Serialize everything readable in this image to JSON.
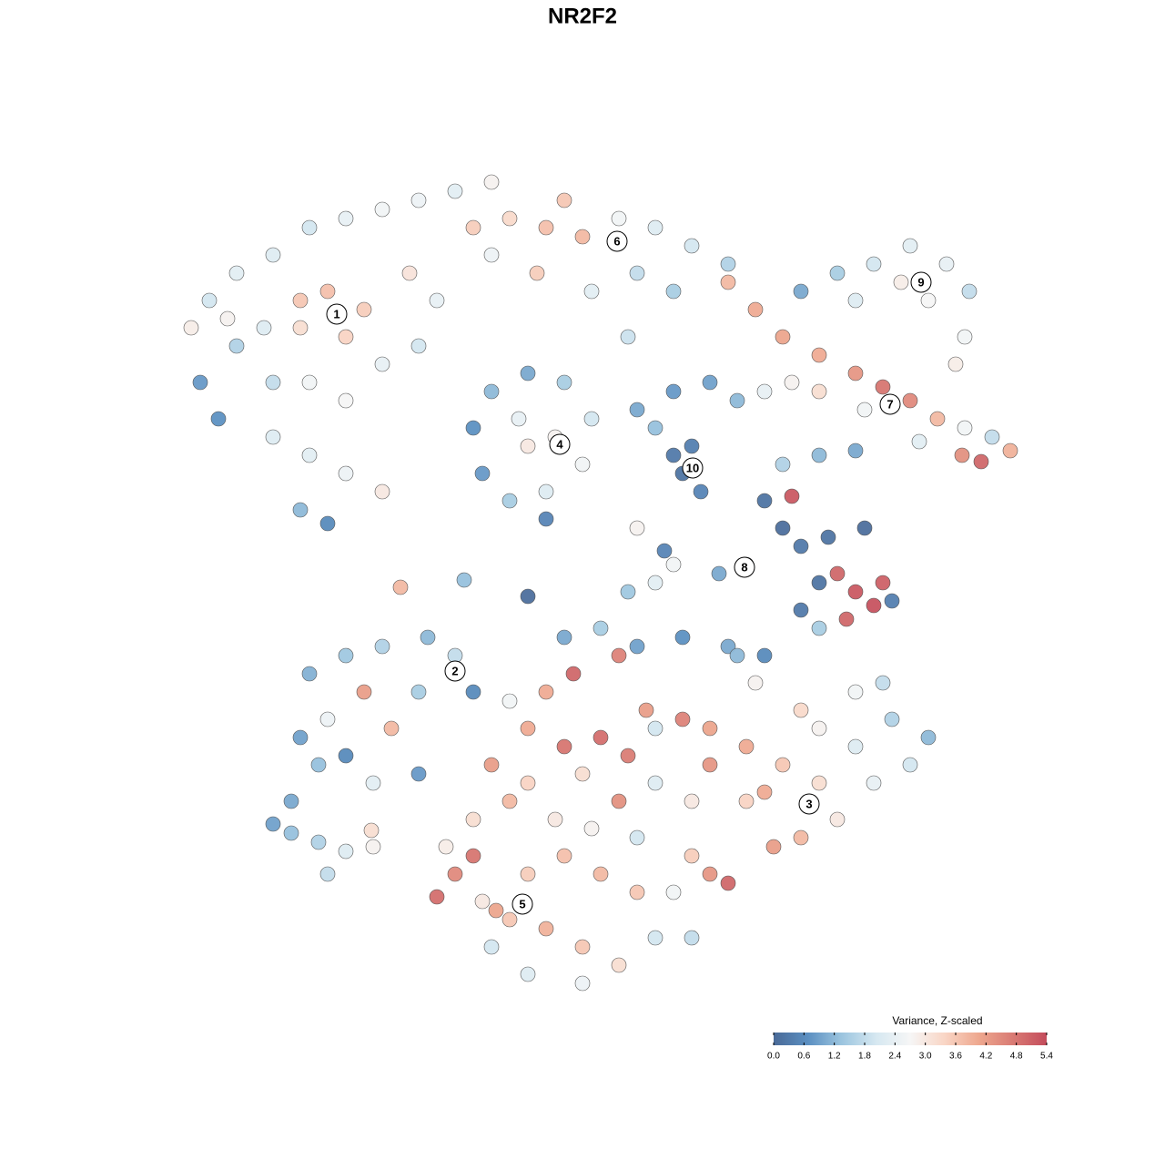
{
  "chart_data": {
    "type": "scatter",
    "title": "NR2F2",
    "xlim": [
      0,
      128
    ],
    "ylim": [
      0,
      128
    ],
    "x": [
      23,
      26,
      30,
      34,
      38,
      42,
      46,
      50,
      54,
      33,
      36,
      40,
      38,
      33,
      29,
      26,
      22,
      24,
      30,
      34,
      38,
      42,
      46,
      30,
      34,
      38,
      33,
      36,
      42,
      45,
      48,
      25,
      21,
      56,
      60,
      64,
      62,
      68,
      72,
      76,
      80,
      70,
      65,
      59,
      54,
      52,
      74,
      69,
      80,
      83,
      86,
      90,
      94,
      97,
      100,
      103,
      106,
      109,
      111,
      107.8,
      105.7,
      90,
      95,
      101,
      87,
      88,
      92,
      96,
      100,
      104,
      106.5,
      106,
      105,
      102,
      94,
      99,
      52,
      54,
      58,
      62,
      65,
      64,
      60,
      56,
      53,
      58,
      61,
      57,
      60,
      70,
      74,
      78,
      81,
      76,
      75,
      77,
      74,
      72,
      84,
      84,
      86,
      88,
      91,
      95,
      90,
      88,
      92,
      94,
      96,
      97,
      93,
      87,
      82,
      79,
      90,
      98,
      86,
      90,
      94,
      72,
      69,
      74,
      62,
      66,
      70,
      75,
      80,
      84,
      58,
      44,
      51,
      70,
      73,
      34,
      38,
      42,
      47,
      50,
      52,
      40,
      36,
      33,
      38,
      43,
      41,
      46,
      35,
      46,
      30,
      32,
      35,
      38,
      36,
      41,
      32,
      40.8,
      60,
      63,
      68,
      71,
      75,
      78,
      82,
      86,
      90,
      94,
      98,
      102,
      100,
      96,
      92,
      88,
      85,
      80,
      78,
      76,
      82,
      76,
      72,
      68,
      64,
      62,
      58,
      54,
      56,
      52,
      49,
      50,
      52,
      48,
      53,
      56,
      60,
      64,
      68,
      64,
      58,
      54,
      72,
      76,
      70,
      66,
      62,
      58,
      61,
      65,
      70,
      74,
      58,
      66,
      69,
      72,
      78,
      84,
      94,
      97,
      90,
      88,
      56,
      81,
      83,
      54.5
    ],
    "y": [
      95,
      98,
      100,
      103,
      104,
      105,
      106,
      107,
      108,
      95,
      96,
      94,
      91,
      92,
      92,
      90,
      86,
      82,
      86,
      86,
      84,
      88,
      90,
      80,
      78,
      76,
      72,
      70.5,
      74,
      98,
      95,
      93,
      92,
      104,
      103,
      102,
      106,
      104,
      103,
      101,
      99,
      98,
      96,
      98,
      100,
      103,
      96,
      91,
      97,
      94,
      91,
      89,
      87,
      85.5,
      84,
      82,
      81,
      80,
      78.5,
      77.3,
      78,
      85,
      83,
      79.5,
      86,
      96,
      98,
      99,
      101,
      99,
      96,
      91,
      88,
      95,
      95,
      97,
      81,
      85,
      87,
      86,
      82,
      77,
      74,
      73,
      76,
      79,
      80,
      82,
      71,
      83,
      85,
      86,
      84,
      79,
      76,
      74,
      78,
      81,
      85,
      73,
      70,
      68,
      69,
      70,
      64,
      61,
      65,
      63,
      61.5,
      64,
      60,
      73.5,
      66,
      65,
      59,
      62,
      77,
      78,
      78.5,
      64,
      63,
      66,
      58,
      59,
      57,
      58,
      57,
      56,
      62.5,
      63.5,
      64.3,
      70,
      67.5,
      54,
      56,
      57,
      58,
      56,
      52,
      52,
      49,
      47,
      45,
      48,
      42,
      43,
      44,
      52,
      37.5,
      36.5,
      35.5,
      34.5,
      32,
      35,
      40,
      36.8,
      52,
      54,
      56,
      50,
      49,
      48,
      46,
      44,
      42,
      46,
      49,
      47,
      44,
      42,
      38,
      36,
      35,
      31,
      32,
      34,
      40,
      40,
      42,
      40,
      43,
      46,
      48,
      44,
      40,
      38,
      35,
      32,
      34,
      29.5,
      29,
      27,
      26,
      24,
      22,
      20,
      21,
      24,
      25,
      25,
      30,
      32,
      34,
      32,
      38,
      37,
      36,
      30,
      42,
      47,
      45,
      48,
      44,
      41,
      52,
      53,
      48,
      50,
      51,
      56,
      53,
      28
    ],
    "values": [
      2.0,
      2.3,
      2.2,
      2.0,
      2.4,
      2.6,
      2.5,
      2.3,
      2.8,
      3.6,
      3.7,
      3.5,
      3.4,
      3.2,
      2.2,
      1.6,
      0.8,
      0.7,
      1.8,
      2.6,
      2.7,
      2.4,
      2.0,
      2.2,
      2.3,
      2.5,
      1.2,
      0.6,
      3.0,
      3.1,
      2.4,
      2.8,
      2.9,
      3.3,
      3.7,
      3.8,
      3.6,
      2.6,
      2.2,
      2.0,
      1.6,
      1.8,
      2.3,
      3.5,
      2.5,
      3.5,
      1.5,
      1.9,
      3.8,
      4.0,
      4.1,
      4.0,
      4.3,
      4.8,
      4.5,
      3.8,
      2.6,
      1.8,
      3.9,
      5.0,
      4.4,
      3.2,
      2.6,
      2.3,
      2.8,
      1.0,
      1.5,
      2.0,
      2.3,
      2.4,
      1.8,
      2.6,
      2.9,
      2.7,
      2.2,
      2.9,
      0.7,
      1.2,
      1.0,
      1.5,
      2.0,
      2.6,
      2.2,
      1.5,
      0.8,
      3.0,
      2.8,
      2.4,
      0.5,
      1.0,
      0.8,
      0.9,
      1.2,
      0.4,
      0.2,
      0.5,
      0.3,
      1.3,
      2.4,
      0.2,
      0.1,
      0.3,
      0.2,
      0.1,
      0.2,
      0.3,
      5.0,
      5.2,
      5.3,
      5.1,
      5.0,
      5.2,
      0.7,
      1.0,
      1.5,
      0.4,
      1.6,
      1.2,
      1.0,
      2.3,
      1.4,
      2.6,
      1.0,
      1.5,
      0.9,
      0.7,
      1.0,
      0.6,
      0.1,
      3.8,
      1.3,
      2.8,
      0.5,
      1.1,
      1.4,
      1.6,
      1.2,
      1.8,
      0.6,
      4.2,
      2.5,
      0.9,
      0.6,
      3.8,
      2.3,
      0.8,
      1.3,
      1.5,
      0.9,
      1.3,
      1.6,
      2.2,
      1.8,
      2.8,
      1.0,
      3.2,
      4.0,
      5.0,
      4.6,
      4.2,
      4.6,
      4.1,
      4.0,
      3.6,
      3.2,
      2.2,
      1.6,
      1.2,
      2.0,
      2.4,
      3.0,
      3.8,
      4.2,
      5.0,
      4.3,
      3.5,
      3.4,
      3.0,
      2.2,
      4.4,
      3.2,
      4.8,
      4.0,
      4.2,
      3.8,
      3.2,
      2.9,
      4.5,
      4.8,
      4.9,
      3.0,
      3.6,
      3.9,
      3.6,
      3.2,
      2.5,
      2.2,
      2.0,
      2.0,
      1.8,
      3.6,
      3.8,
      3.7,
      3.5,
      3.0,
      2.8,
      2.0,
      2.6,
      3.4,
      4.9,
      4.7,
      2.0,
      4.3,
      4.0,
      2.6,
      1.8,
      2.8,
      3.3,
      2.6,
      1.2,
      2.8,
      4.1
    ],
    "annotations": [
      {
        "text": "1",
        "x": 37,
        "y": 93.5
      },
      {
        "text": "6",
        "x": 67.8,
        "y": 101.5
      },
      {
        "text": "9",
        "x": 101.2,
        "y": 97
      },
      {
        "text": "7",
        "x": 97.8,
        "y": 83.6
      },
      {
        "text": "4",
        "x": 61.5,
        "y": 79.2
      },
      {
        "text": "10",
        "x": 76.1,
        "y": 76.6
      },
      {
        "text": "8",
        "x": 81.8,
        "y": 65.7
      },
      {
        "text": "2",
        "x": 50,
        "y": 54.3
      },
      {
        "text": "3",
        "x": 88.9,
        "y": 39.7
      },
      {
        "text": "5",
        "x": 57.4,
        "y": 28.7
      }
    ],
    "colormap": [
      "#4a6a97",
      "#5b8fc1",
      "#9cc5df",
      "#d6e8f1",
      "#f6f6f6",
      "#f9d6c6",
      "#eea88f",
      "#d97b74",
      "#c44c5c"
    ],
    "colorbar": {
      "title": "Variance, Z-scaled",
      "clim": [
        0,
        5.4
      ],
      "ticks": [
        {
          "value": 0,
          "label": "0.0"
        },
        {
          "value": 0.6,
          "label": "0.6"
        },
        {
          "value": 1.2,
          "label": "1.2"
        },
        {
          "value": 1.8,
          "label": "1.8"
        },
        {
          "value": 2.4,
          "label": "2.4"
        },
        {
          "value": 3,
          "label": "3.0"
        },
        {
          "value": 3.6,
          "label": "3.6"
        },
        {
          "value": 4.2,
          "label": "4.2"
        },
        {
          "value": 4.8,
          "label": "4.8"
        },
        {
          "value": 5.4,
          "label": "5.4"
        }
      ]
    }
  }
}
